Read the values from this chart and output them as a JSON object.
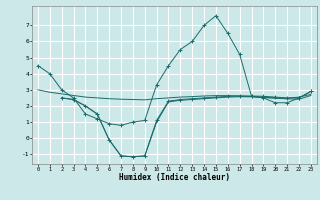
{
  "xlabel": "Humidex (Indice chaleur)",
  "background_color": "#cce8e8",
  "grid_color": "#ffffff",
  "line_color": "#1a6b6b",
  "x_ticks": [
    0,
    1,
    2,
    3,
    4,
    5,
    6,
    7,
    8,
    9,
    10,
    11,
    12,
    13,
    14,
    15,
    16,
    17,
    18,
    19,
    20,
    21,
    22,
    23
  ],
  "y_ticks": [
    -1,
    0,
    1,
    2,
    3,
    4,
    5,
    6,
    7
  ],
  "ylim": [
    -1.6,
    8.2
  ],
  "xlim": [
    -0.5,
    23.5
  ],
  "lines": [
    {
      "x": [
        0,
        1,
        2,
        3,
        4,
        5,
        6,
        7,
        8,
        9,
        10,
        11,
        12,
        13,
        14,
        15,
        16,
        17,
        18,
        19,
        20,
        21,
        22,
        23
      ],
      "y": [
        4.5,
        4.0,
        3.0,
        2.5,
        1.5,
        1.2,
        0.9,
        0.8,
        1.0,
        1.1,
        3.3,
        4.5,
        5.5,
        6.0,
        7.0,
        7.6,
        6.5,
        5.2,
        2.6,
        2.5,
        2.2,
        2.2,
        2.5,
        2.9
      ],
      "marker": "+"
    },
    {
      "x": [
        0,
        1,
        2,
        3,
        4,
        5,
        6,
        7,
        8,
        9,
        10,
        11,
        12,
        13,
        14,
        15,
        16,
        17,
        18,
        19,
        20,
        21,
        22,
        23
      ],
      "y": [
        3.0,
        2.85,
        2.75,
        2.65,
        2.55,
        2.5,
        2.45,
        2.42,
        2.4,
        2.38,
        2.45,
        2.5,
        2.55,
        2.58,
        2.62,
        2.64,
        2.64,
        2.62,
        2.58,
        2.54,
        2.5,
        2.48,
        2.55,
        2.72
      ],
      "marker": null
    },
    {
      "x": [
        2,
        3,
        4,
        5,
        6,
        7,
        8,
        9,
        10,
        11,
        12,
        13,
        14,
        15,
        16,
        17,
        18,
        19,
        20,
        21,
        22,
        23
      ],
      "y": [
        2.5,
        2.4,
        2.0,
        1.5,
        -0.1,
        -1.1,
        -1.15,
        -1.1,
        1.1,
        2.3,
        2.4,
        2.45,
        2.5,
        2.55,
        2.6,
        2.62,
        2.62,
        2.6,
        2.55,
        2.5,
        2.5,
        2.9
      ],
      "marker": "+"
    },
    {
      "x": [
        2,
        3,
        4,
        5,
        6,
        7,
        8,
        9,
        10,
        11,
        12,
        13,
        14,
        15,
        16,
        17,
        18,
        19,
        20,
        21,
        22,
        23
      ],
      "y": [
        2.5,
        2.4,
        2.0,
        1.5,
        -0.1,
        -1.1,
        -1.15,
        -1.1,
        1.0,
        2.25,
        2.35,
        2.4,
        2.45,
        2.5,
        2.55,
        2.57,
        2.57,
        2.52,
        2.48,
        2.44,
        2.42,
        2.65
      ],
      "marker": null
    }
  ]
}
